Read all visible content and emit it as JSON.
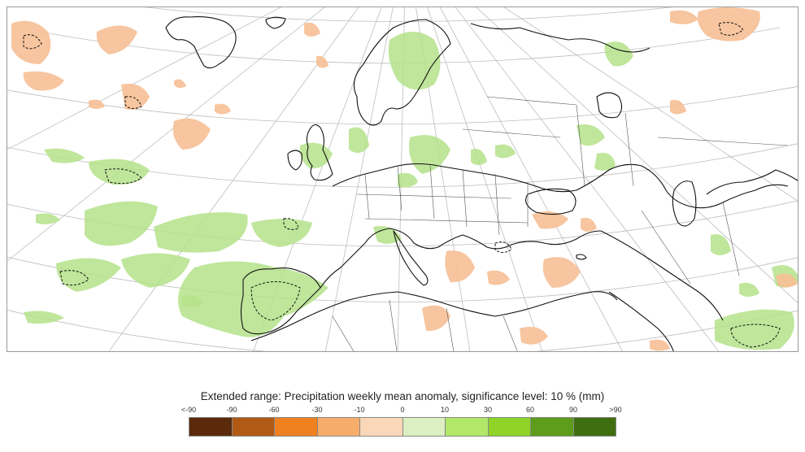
{
  "legend": {
    "title": "Extended range: Precipitation weekly mean anomaly, significance level: 10 % (mm)",
    "tick_labels": [
      "<-90",
      "-90",
      "-60",
      "-30",
      "-10",
      "0",
      "10",
      "30",
      "60",
      "90",
      ">90"
    ],
    "colors": [
      "#5a2a0a",
      "#b15a15",
      "#f08020",
      "#f6ad6c",
      "#f9d7b8",
      "#dcefc1",
      "#b2e86a",
      "#8fd327",
      "#5e9c1c",
      "#3f6e10"
    ]
  },
  "map": {
    "region": "Europe and North Africa",
    "anomaly_colors": {
      "wet": "#b4e28a",
      "dry": "#f6bf95"
    }
  }
}
